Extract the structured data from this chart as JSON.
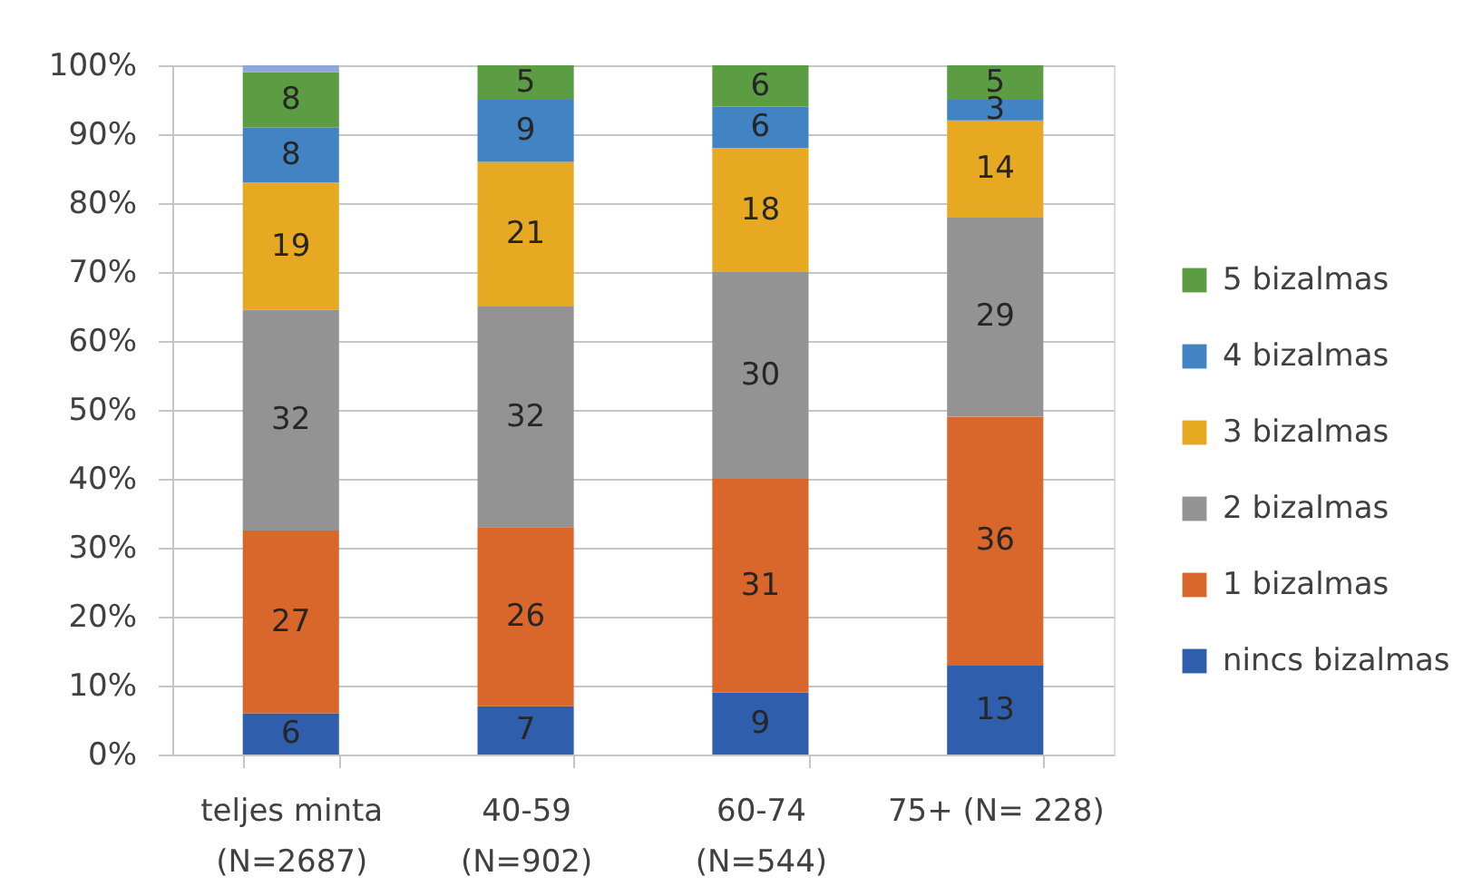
{
  "chart_data": {
    "type": "bar",
    "stacked": true,
    "categories": [
      "teljes minta (N=2687)",
      "40-59 (N=902)",
      "60-74 (N=544)",
      "75+ (N= 228)"
    ],
    "series": [
      {
        "name": "nincs bizalmas",
        "color": "#2f5fac",
        "values": [
          6,
          7,
          9,
          13
        ],
        "value_labels": [
          "6",
          "7",
          "9",
          "13"
        ]
      },
      {
        "name": "1 bizalmas",
        "color": "#d9672c",
        "values": [
          26.5,
          26,
          31,
          36
        ],
        "value_labels": [
          "27",
          "26",
          "31",
          "36"
        ]
      },
      {
        "name": "2 bizalmas",
        "color": "#939393",
        "values": [
          32,
          32,
          30,
          29
        ],
        "value_labels": [
          "32",
          "32",
          "30",
          "29"
        ]
      },
      {
        "name": "3 bizalmas",
        "color": "#e8a922",
        "values": [
          18.5,
          21,
          18,
          14
        ],
        "value_labels": [
          "19",
          "21",
          "18",
          "14"
        ]
      },
      {
        "name": "4 bizalmas",
        "color": "#4283c4",
        "values": [
          8,
          9,
          6,
          3
        ],
        "value_labels": [
          "8",
          "9",
          "6",
          "3"
        ]
      },
      {
        "name": "5 bizalmas",
        "color": "#5c9c42",
        "values": [
          8,
          5,
          6,
          5
        ],
        "value_labels": [
          "8",
          "5",
          "6",
          "5"
        ]
      },
      {
        "color": "#8ea6da",
        "values": [
          1,
          null,
          null,
          null
        ]
      }
    ],
    "ylim": [
      0,
      100
    ],
    "yticks": [
      {
        "value": 0,
        "label": "0%"
      },
      {
        "value": 10,
        "label": "10%"
      },
      {
        "value": 20,
        "label": "20%"
      },
      {
        "value": 30,
        "label": "30%"
      },
      {
        "value": 40,
        "label": "40%"
      },
      {
        "value": 50,
        "label": "50%"
      },
      {
        "value": 60,
        "label": "60%"
      },
      {
        "value": 70,
        "label": "70%"
      },
      {
        "value": 80,
        "label": "80%"
      },
      {
        "value": 90,
        "label": "90%"
      },
      {
        "value": 100,
        "label": "100%"
      }
    ],
    "grid": "y",
    "legend": "right"
  }
}
